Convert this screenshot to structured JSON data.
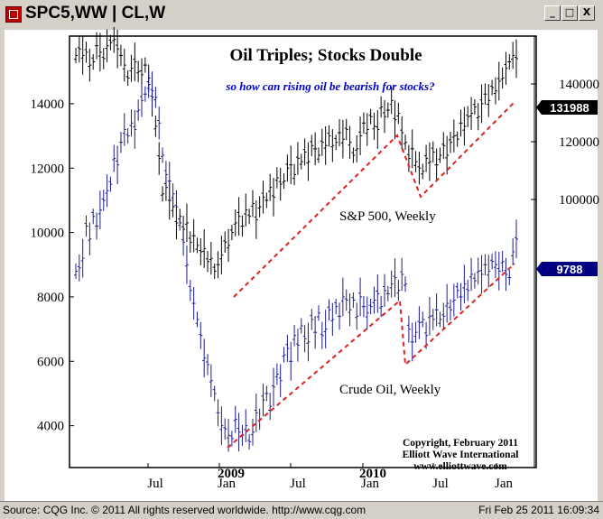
{
  "window": {
    "title": "SPC5,WW  |  CL,W",
    "minimize_label": "_",
    "maximize_label": "□",
    "close_label": "X"
  },
  "status": {
    "left": "Source: CQG Inc. © 2011 All rights reserved worldwide. http://www.cqg.com",
    "right": "Fri Feb 25 2011 16:09:34"
  },
  "chart_data": {
    "type": "line",
    "title": "Oil Triples; Stocks Double",
    "subtitle": "so how can rising oil be bearish for stocks?",
    "x_tick_labels": [
      "Jul",
      "Jan",
      "Jul",
      "Jan",
      "Jul",
      "Jan"
    ],
    "year_labels": [
      "2009",
      "2010"
    ],
    "left_axis": {
      "ticks": [
        4000,
        6000,
        8000,
        10000,
        12000,
        14000
      ],
      "range": [
        2700,
        16100
      ]
    },
    "right_axis": {
      "ticks": [
        100000,
        120000,
        140000
      ]
    },
    "last_values": {
      "sp500": "131988",
      "crude": "9788"
    },
    "series": [
      {
        "name": "S&P 500, Weekly",
        "color": "#000000",
        "values": [
          15500,
          15700,
          15500,
          15600,
          15200,
          15300,
          15800,
          15600,
          15400,
          15800,
          15900,
          16000,
          15700,
          15500,
          15200,
          14800,
          15100,
          15300,
          15000,
          14900,
          15200,
          14800,
          14200,
          13300,
          12300,
          11200,
          11400,
          11000,
          10800,
          10300,
          10500,
          10100,
          10300,
          9700,
          9900,
          9600,
          9400,
          9500,
          9100,
          9200,
          8800,
          9000,
          9300,
          9700,
          9600,
          10000,
          10300,
          10500,
          10200,
          10700,
          10500,
          10900,
          10400,
          10800,
          11100,
          11000,
          11400,
          11100,
          11700,
          11500,
          11600,
          12000,
          12100,
          11800,
          12300,
          12200,
          12500,
          12200,
          12700,
          12600,
          12400,
          12800,
          12700,
          13000,
          12700,
          12800,
          13100,
          12900,
          13200,
          12800,
          12400,
          12600,
          13000,
          13400,
          13200,
          13600,
          13300,
          13200,
          13900,
          13600,
          13800,
          14100,
          13500,
          13700,
          13100,
          12800,
          12300,
          12600,
          12200,
          12000,
          11900,
          12300,
          12200,
          12500,
          12100,
          12400,
          12700,
          12400,
          12800,
          13000,
          12900,
          13400,
          13300,
          13600,
          13700,
          13900,
          13600,
          14000,
          14300,
          14100,
          14500,
          14400,
          14700,
          14800,
          15100,
          15300,
          15500,
          15400
        ]
      },
      {
        "name": "Crude Oil, Weekly",
        "color": "#1c1c8e",
        "values": [
          8800,
          8900,
          9200,
          10200,
          9800,
          10500,
          10200,
          10700,
          11000,
          11300,
          11500,
          12300,
          12100,
          12800,
          13200,
          13000,
          13400,
          13200,
          13800,
          14100,
          14300,
          14600,
          14400,
          14200,
          13400,
          12400,
          11800,
          11600,
          11200,
          10800,
          10300,
          9700,
          9000,
          8200,
          7800,
          7300,
          6800,
          6100,
          5900,
          5400,
          5000,
          4400,
          4000,
          3900,
          3700,
          3600,
          4200,
          3800,
          3700,
          4000,
          3500,
          3800,
          4400,
          4200,
          4800,
          5000,
          4600,
          5200,
          5600,
          5400,
          6200,
          6400,
          6000,
          6800,
          6500,
          7100,
          6700,
          6600,
          7300,
          6900,
          7500,
          6800,
          7000,
          7600,
          7300,
          7700,
          7400,
          8000,
          7900,
          7600,
          7900,
          7400,
          8000,
          7700,
          7500,
          7700,
          7900,
          8100,
          7700,
          8200,
          8100,
          8400,
          8600,
          8200,
          8700,
          8400,
          7000,
          6600,
          6900,
          7200,
          7300,
          6800,
          7400,
          7300,
          7600,
          7300,
          7400,
          7800,
          7600,
          7900,
          8200,
          8000,
          8400,
          8200,
          8700,
          8500,
          8800,
          8700,
          9000,
          8800,
          9100,
          9000,
          8800,
          9100,
          8700,
          8600,
          9400,
          9800
        ]
      }
    ],
    "annotations": [
      "Copyright, February 2011",
      "Elliott Wave International",
      "www.elliottwave.com"
    ],
    "trendline_color": "#dd2222",
    "grid": false
  }
}
